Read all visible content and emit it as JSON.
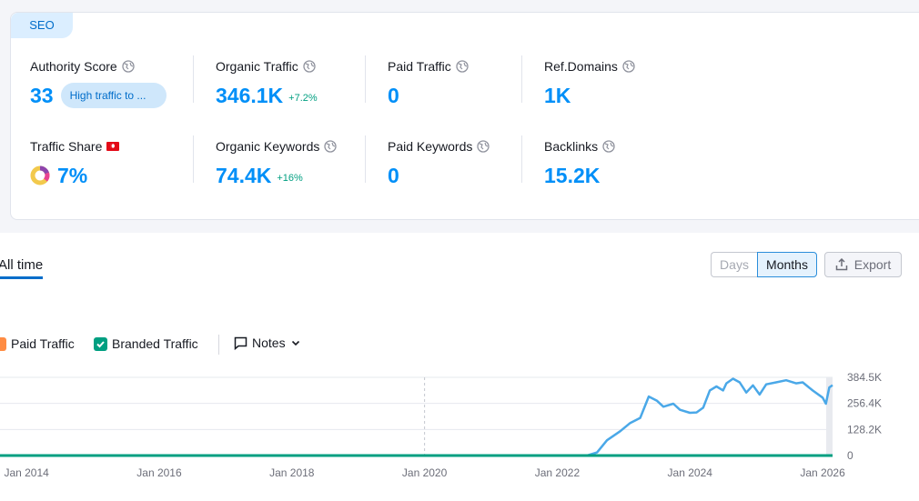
{
  "section_tab": "SEO",
  "metrics": {
    "authority_score": {
      "label": "Authority Score",
      "value": "33",
      "badge": "High traffic to ..."
    },
    "organic_traffic": {
      "label": "Organic Traffic",
      "value": "346.1K",
      "delta": "+7.2%"
    },
    "paid_traffic": {
      "label": "Paid Traffic",
      "value": "0"
    },
    "ref_domains": {
      "label": "Ref.Domains",
      "value": "1K"
    },
    "traffic_share": {
      "label": "Traffic Share",
      "value": "7%"
    },
    "organic_keywords": {
      "label": "Organic Keywords",
      "value": "74.4K",
      "delta": "+16%"
    },
    "paid_keywords": {
      "label": "Paid Keywords",
      "value": "0"
    },
    "backlinks": {
      "label": "Backlinks",
      "value": "15.2K"
    }
  },
  "period_tab": "All time",
  "toggle": {
    "days": "Days",
    "months": "Months"
  },
  "export_label": "Export",
  "legend": {
    "paid_traffic": "Paid Traffic",
    "branded_traffic": "Branded Traffic",
    "notes": "Notes"
  },
  "colors": {
    "accent": "#008ff8",
    "line": "#4aa8e8",
    "branded": "#009f81",
    "delta": "#009f81"
  },
  "chart_data": {
    "type": "line",
    "title": "",
    "x_ticks": [
      "Jan 2014",
      "Jan 2016",
      "Jan 2018",
      "Jan 2020",
      "Jan 2022",
      "Jan 2024",
      "Jan 2026"
    ],
    "y_ticks": [
      "384.5K",
      "256.4K",
      "128.2K",
      "0"
    ],
    "ylim": [
      0,
      384500
    ],
    "xlim": [
      2013.6,
      2026.15
    ],
    "marker_x": 2020,
    "series": [
      {
        "name": "Organic Traffic",
        "points": [
          [
            2013.6,
            0
          ],
          [
            2022.45,
            0
          ],
          [
            2022.6,
            15000
          ],
          [
            2022.75,
            75000
          ],
          [
            2022.95,
            120000
          ],
          [
            2023.1,
            160000
          ],
          [
            2023.25,
            185000
          ],
          [
            2023.38,
            290000
          ],
          [
            2023.5,
            270000
          ],
          [
            2023.6,
            240000
          ],
          [
            2023.75,
            255000
          ],
          [
            2023.85,
            225000
          ],
          [
            2024.0,
            210000
          ],
          [
            2024.1,
            212000
          ],
          [
            2024.2,
            235000
          ],
          [
            2024.3,
            320000
          ],
          [
            2024.4,
            340000
          ],
          [
            2024.5,
            320000
          ],
          [
            2024.55,
            355000
          ],
          [
            2024.65,
            378000
          ],
          [
            2024.75,
            360000
          ],
          [
            2024.85,
            310000
          ],
          [
            2024.95,
            345000
          ],
          [
            2025.05,
            300000
          ],
          [
            2025.15,
            350000
          ],
          [
            2025.3,
            360000
          ],
          [
            2025.45,
            370000
          ],
          [
            2025.6,
            355000
          ],
          [
            2025.7,
            360000
          ],
          [
            2025.85,
            320000
          ],
          [
            2026.0,
            285000
          ],
          [
            2026.05,
            255000
          ],
          [
            2026.1,
            335000
          ],
          [
            2026.15,
            346000
          ]
        ]
      },
      {
        "name": "Branded Traffic",
        "points": [
          [
            2013.6,
            0
          ],
          [
            2026.15,
            0
          ]
        ]
      }
    ]
  }
}
